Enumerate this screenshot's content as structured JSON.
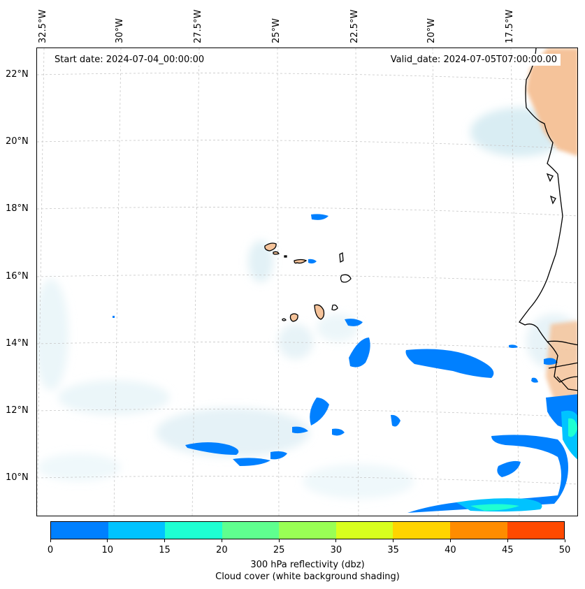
{
  "map": {
    "start_label": "Start date: 2024-07-04_00:00:00",
    "valid_label": "Valid_date: 2024-07-05T07:00:00.00",
    "lon_labels": [
      "32.5°W",
      "30°W",
      "27.5°W",
      "25°W",
      "22.5°W",
      "20°W",
      "17.5°W"
    ],
    "lat_labels": [
      "22°N",
      "20°N",
      "18°N",
      "16°N",
      "14°N",
      "12°N",
      "10°N"
    ]
  },
  "colors": {
    "land": "#f5c39a",
    "coastline": "#000000",
    "cloud": "#cfe8f0",
    "grid": "#c8c8c8"
  },
  "colorbar": {
    "ticks": [
      "0",
      "10",
      "15",
      "20",
      "25",
      "30",
      "35",
      "40",
      "45",
      "50"
    ],
    "colors": [
      "#0080ff",
      "#00c3ff",
      "#1effd2",
      "#5fff8f",
      "#99ff55",
      "#d8ff1e",
      "#ffd400",
      "#ff8c00",
      "#ff4a00"
    ],
    "label_line1": "300 hPa reflectivity (dbz)",
    "label_line2": "Cloud cover (white background shading)"
  }
}
